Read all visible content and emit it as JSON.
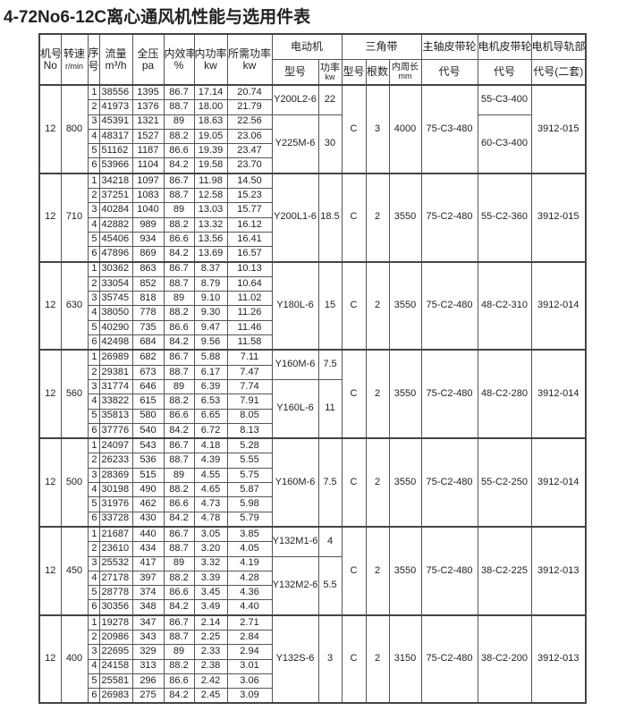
{
  "title": "4-72No6-12C离心通风机性能与选用件表",
  "header": {
    "machine": "机号",
    "machine_unit": "No",
    "speed": "转速",
    "speed_unit": "r/min",
    "seq": "序号",
    "flow": "流量",
    "flow_unit": "m³/h",
    "pressure": "全压",
    "pressure_unit": "pa",
    "efficiency": "内效率",
    "efficiency_unit": "%",
    "inner_power": "内功率",
    "inner_power_unit": "kw",
    "required_power": "所需功率",
    "required_power_unit": "kw",
    "motor": "电动机",
    "motor_model": "型号",
    "motor_power": "功率",
    "motor_power_unit": "kw",
    "vbelt": "三角带",
    "vbelt_type": "型号",
    "vbelt_count": "根数",
    "vbelt_length": "内周长",
    "vbelt_length_unit": "mm",
    "main_pulley": "主轴皮带轮",
    "main_pulley_code": "代号",
    "motor_pulley": "电机皮带轮",
    "motor_pulley_code": "代号",
    "rail": "电机导轨部",
    "rail_code": "代号(二套)"
  },
  "groups": [
    {
      "machine": "12",
      "speed": "800",
      "rows": [
        [
          "1",
          "38556",
          "1395",
          "86.7",
          "17.14",
          "20.74"
        ],
        [
          "2",
          "41973",
          "1376",
          "88.7",
          "18.00",
          "21.79"
        ],
        [
          "3",
          "45391",
          "1321",
          "89",
          "18.63",
          "22.56"
        ],
        [
          "4",
          "48317",
          "1527",
          "88.2",
          "19.05",
          "23.06"
        ],
        [
          "5",
          "51162",
          "1187",
          "86.6",
          "19.39",
          "23.47"
        ],
        [
          "6",
          "53966",
          "1104",
          "84.2",
          "19.58",
          "23.70"
        ]
      ],
      "motors": [
        {
          "model": "Y200L2-6",
          "power": "22",
          "span": 2
        },
        {
          "model": "Y225M-6",
          "power": "30",
          "span": 4
        }
      ],
      "belt_type": "C",
      "belt_count": "3",
      "belt_length": "4000",
      "main_pulley": "75-C3-480",
      "motor_pulleys": [
        {
          "code": "55-C3-400",
          "span": 2
        },
        {
          "code": "60-C3-400",
          "span": 4
        }
      ],
      "rail": "3912-015"
    },
    {
      "machine": "12",
      "speed": "710",
      "rows": [
        [
          "1",
          "34218",
          "1097",
          "86.7",
          "11.98",
          "14.50"
        ],
        [
          "2",
          "37251",
          "1083",
          "88.7",
          "12.58",
          "15.23"
        ],
        [
          "3",
          "40284",
          "1040",
          "89",
          "13.03",
          "15.77"
        ],
        [
          "4",
          "42882",
          "989",
          "88.2",
          "13.32",
          "16.12"
        ],
        [
          "5",
          "45406",
          "934",
          "86.6",
          "13.56",
          "16.41"
        ],
        [
          "6",
          "47896",
          "869",
          "84.2",
          "13.69",
          "16.57"
        ]
      ],
      "motors": [
        {
          "model": "Y200L1-6",
          "power": "18.5",
          "span": 6
        }
      ],
      "belt_type": "C",
      "belt_count": "2",
      "belt_length": "3550",
      "main_pulley": "75-C2-480",
      "motor_pulleys": [
        {
          "code": "55-C2-360",
          "span": 6
        }
      ],
      "rail": "3912-015"
    },
    {
      "machine": "12",
      "speed": "630",
      "rows": [
        [
          "1",
          "30362",
          "863",
          "86.7",
          "8.37",
          "10.13"
        ],
        [
          "2",
          "33054",
          "852",
          "88.7",
          "8.79",
          "10.64"
        ],
        [
          "3",
          "35745",
          "818",
          "89",
          "9.10",
          "11.02"
        ],
        [
          "4",
          "38050",
          "778",
          "88.2",
          "9.30",
          "11.26"
        ],
        [
          "5",
          "40290",
          "735",
          "86.6",
          "9.47",
          "11.46"
        ],
        [
          "6",
          "42498",
          "684",
          "84.2",
          "9.56",
          "11.58"
        ]
      ],
      "motors": [
        {
          "model": "Y180L-6",
          "power": "15",
          "span": 6
        }
      ],
      "belt_type": "C",
      "belt_count": "2",
      "belt_length": "3550",
      "main_pulley": "75-C2-480",
      "motor_pulleys": [
        {
          "code": "48-C2-310",
          "span": 6
        }
      ],
      "rail": "3912-014"
    },
    {
      "machine": "12",
      "speed": "560",
      "rows": [
        [
          "1",
          "26989",
          "682",
          "86.7",
          "5.88",
          "7.11"
        ],
        [
          "2",
          "29381",
          "673",
          "88.7",
          "6.17",
          "7.47"
        ],
        [
          "3",
          "31774",
          "646",
          "89",
          "6.39",
          "7.74"
        ],
        [
          "4",
          "33822",
          "615",
          "88.2",
          "6.53",
          "7.91"
        ],
        [
          "5",
          "35813",
          "580",
          "86.6",
          "6.65",
          "8.05"
        ],
        [
          "6",
          "37776",
          "540",
          "84.2",
          "6.72",
          "8.13"
        ]
      ],
      "motors": [
        {
          "model": "Y160M-6",
          "power": "7.5",
          "span": 2
        },
        {
          "model": "Y160L-6",
          "power": "11",
          "span": 4
        }
      ],
      "belt_type": "C",
      "belt_count": "2",
      "belt_length": "3550",
      "main_pulley": "75-C2-480",
      "motor_pulleys": [
        {
          "code": "48-C2-280",
          "span": 6
        }
      ],
      "rail": "3912-014"
    },
    {
      "machine": "12",
      "speed": "500",
      "rows": [
        [
          "1",
          "24097",
          "543",
          "86.7",
          "4.18",
          "5.28"
        ],
        [
          "2",
          "26233",
          "536",
          "88.7",
          "4.39",
          "5.55"
        ],
        [
          "3",
          "28369",
          "515",
          "89",
          "4.55",
          "5.75"
        ],
        [
          "4",
          "30198",
          "490",
          "88.2",
          "4.65",
          "5.87"
        ],
        [
          "5",
          "31976",
          "462",
          "86.6",
          "4.73",
          "5.98"
        ],
        [
          "6",
          "33728",
          "430",
          "84.2",
          "4.78",
          "5.79"
        ]
      ],
      "motors": [
        {
          "model": "Y160M-6",
          "power": "7.5",
          "span": 6
        }
      ],
      "belt_type": "C",
      "belt_count": "2",
      "belt_length": "3550",
      "main_pulley": "75-C2-480",
      "motor_pulleys": [
        {
          "code": "55-C2-250",
          "span": 6
        }
      ],
      "rail": "3912-014"
    },
    {
      "machine": "12",
      "speed": "450",
      "rows": [
        [
          "1",
          "21687",
          "440",
          "86.7",
          "3.05",
          "3.85"
        ],
        [
          "2",
          "23610",
          "434",
          "88.7",
          "3.20",
          "4.05"
        ],
        [
          "3",
          "25532",
          "417",
          "89",
          "3.32",
          "4.19"
        ],
        [
          "4",
          "27178",
          "397",
          "88.2",
          "3.39",
          "4.28"
        ],
        [
          "5",
          "28778",
          "374",
          "86.6",
          "3.45",
          "4.36"
        ],
        [
          "6",
          "30356",
          "348",
          "84.2",
          "3.49",
          "4.40"
        ]
      ],
      "motors": [
        {
          "model": "Y132M1-6",
          "power": "4",
          "span": 2
        },
        {
          "model": "Y132M2-6",
          "power": "5.5",
          "span": 4
        }
      ],
      "belt_type": "C",
      "belt_count": "2",
      "belt_length": "3550",
      "main_pulley": "75-C2-480",
      "motor_pulleys": [
        {
          "code": "38-C2-225",
          "span": 6
        }
      ],
      "rail": "3912-013"
    },
    {
      "machine": "12",
      "speed": "400",
      "rows": [
        [
          "1",
          "19278",
          "347",
          "86.7",
          "2.14",
          "2.71"
        ],
        [
          "2",
          "20986",
          "343",
          "88.7",
          "2.25",
          "2.84"
        ],
        [
          "3",
          "22695",
          "329",
          "89",
          "2.33",
          "2.94"
        ],
        [
          "4",
          "24158",
          "313",
          "88.2",
          "2.38",
          "3.01"
        ],
        [
          "5",
          "25581",
          "296",
          "86.6",
          "2.42",
          "3.06"
        ],
        [
          "6",
          "26983",
          "275",
          "84.2",
          "2.45",
          "3.09"
        ]
      ],
      "motors": [
        {
          "model": "Y132S-6",
          "power": "3",
          "span": 6
        }
      ],
      "belt_type": "C",
      "belt_count": "2",
      "belt_length": "3150",
      "main_pulley": "75-C2-480",
      "motor_pulleys": [
        {
          "code": "38-C2-200",
          "span": 6
        }
      ],
      "rail": "3912-013"
    }
  ]
}
